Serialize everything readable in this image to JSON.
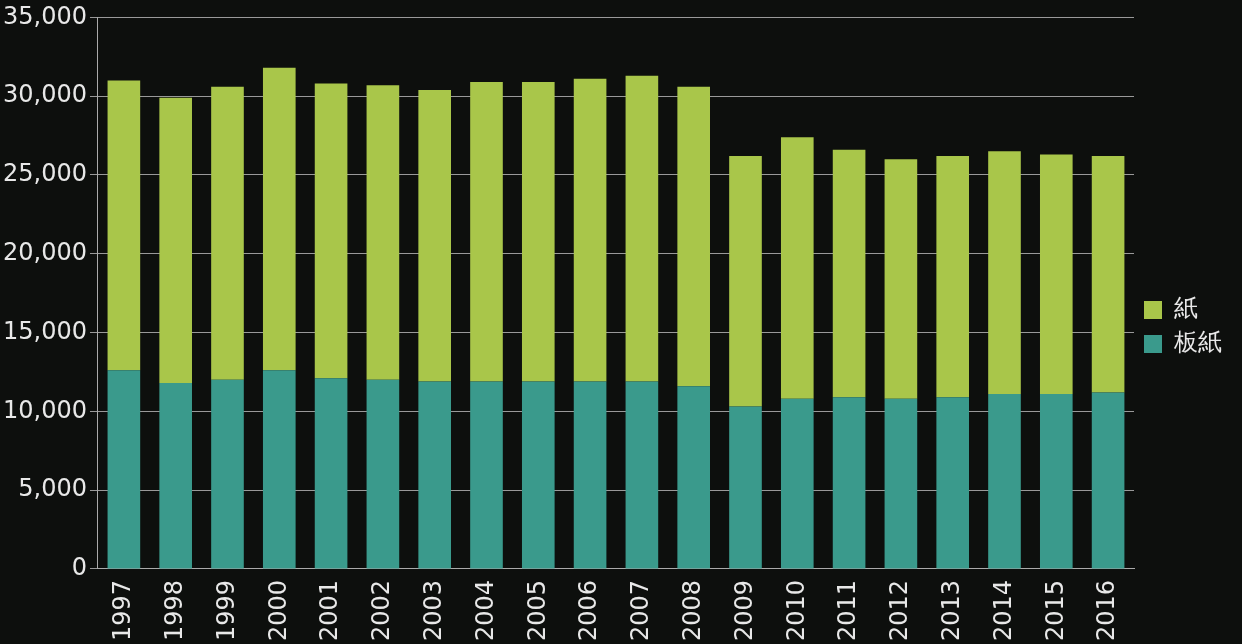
{
  "chart_data": {
    "type": "bar",
    "stacked": true,
    "categories": [
      "1997",
      "1998",
      "1999",
      "2000",
      "2001",
      "2002",
      "2003",
      "2004",
      "2005",
      "2006",
      "2007",
      "2008",
      "2009",
      "2010",
      "2011",
      "2012",
      "2013",
      "2014",
      "2015",
      "2016"
    ],
    "series": [
      {
        "name": "板紙",
        "color": "#3a9a8c",
        "values": [
          12600,
          11800,
          12000,
          12600,
          12100,
          12000,
          11900,
          11900,
          11900,
          11900,
          11900,
          11600,
          10300,
          10800,
          10900,
          10800,
          10900,
          11100,
          11100,
          11200
        ]
      },
      {
        "name": "紙",
        "color": "#a9c64a",
        "values": [
          18400,
          18100,
          18600,
          19200,
          18700,
          18700,
          18500,
          19000,
          19000,
          19200,
          19400,
          19000,
          15900,
          16600,
          15700,
          15200,
          15300,
          15400,
          15200,
          15000
        ]
      }
    ],
    "ylim": [
      0,
      35000
    ],
    "yticks": [
      {
        "value": 0,
        "label": "0"
      },
      {
        "value": 5000,
        "label": "5,000"
      },
      {
        "value": 10000,
        "label": "10,000"
      },
      {
        "value": 15000,
        "label": "15,000"
      },
      {
        "value": 20000,
        "label": "20,000"
      },
      {
        "value": 25000,
        "label": "25,000"
      },
      {
        "value": 30000,
        "label": "30,000"
      },
      {
        "value": 35000,
        "label": "35,000"
      }
    ],
    "grid": "y",
    "legend": "right"
  }
}
